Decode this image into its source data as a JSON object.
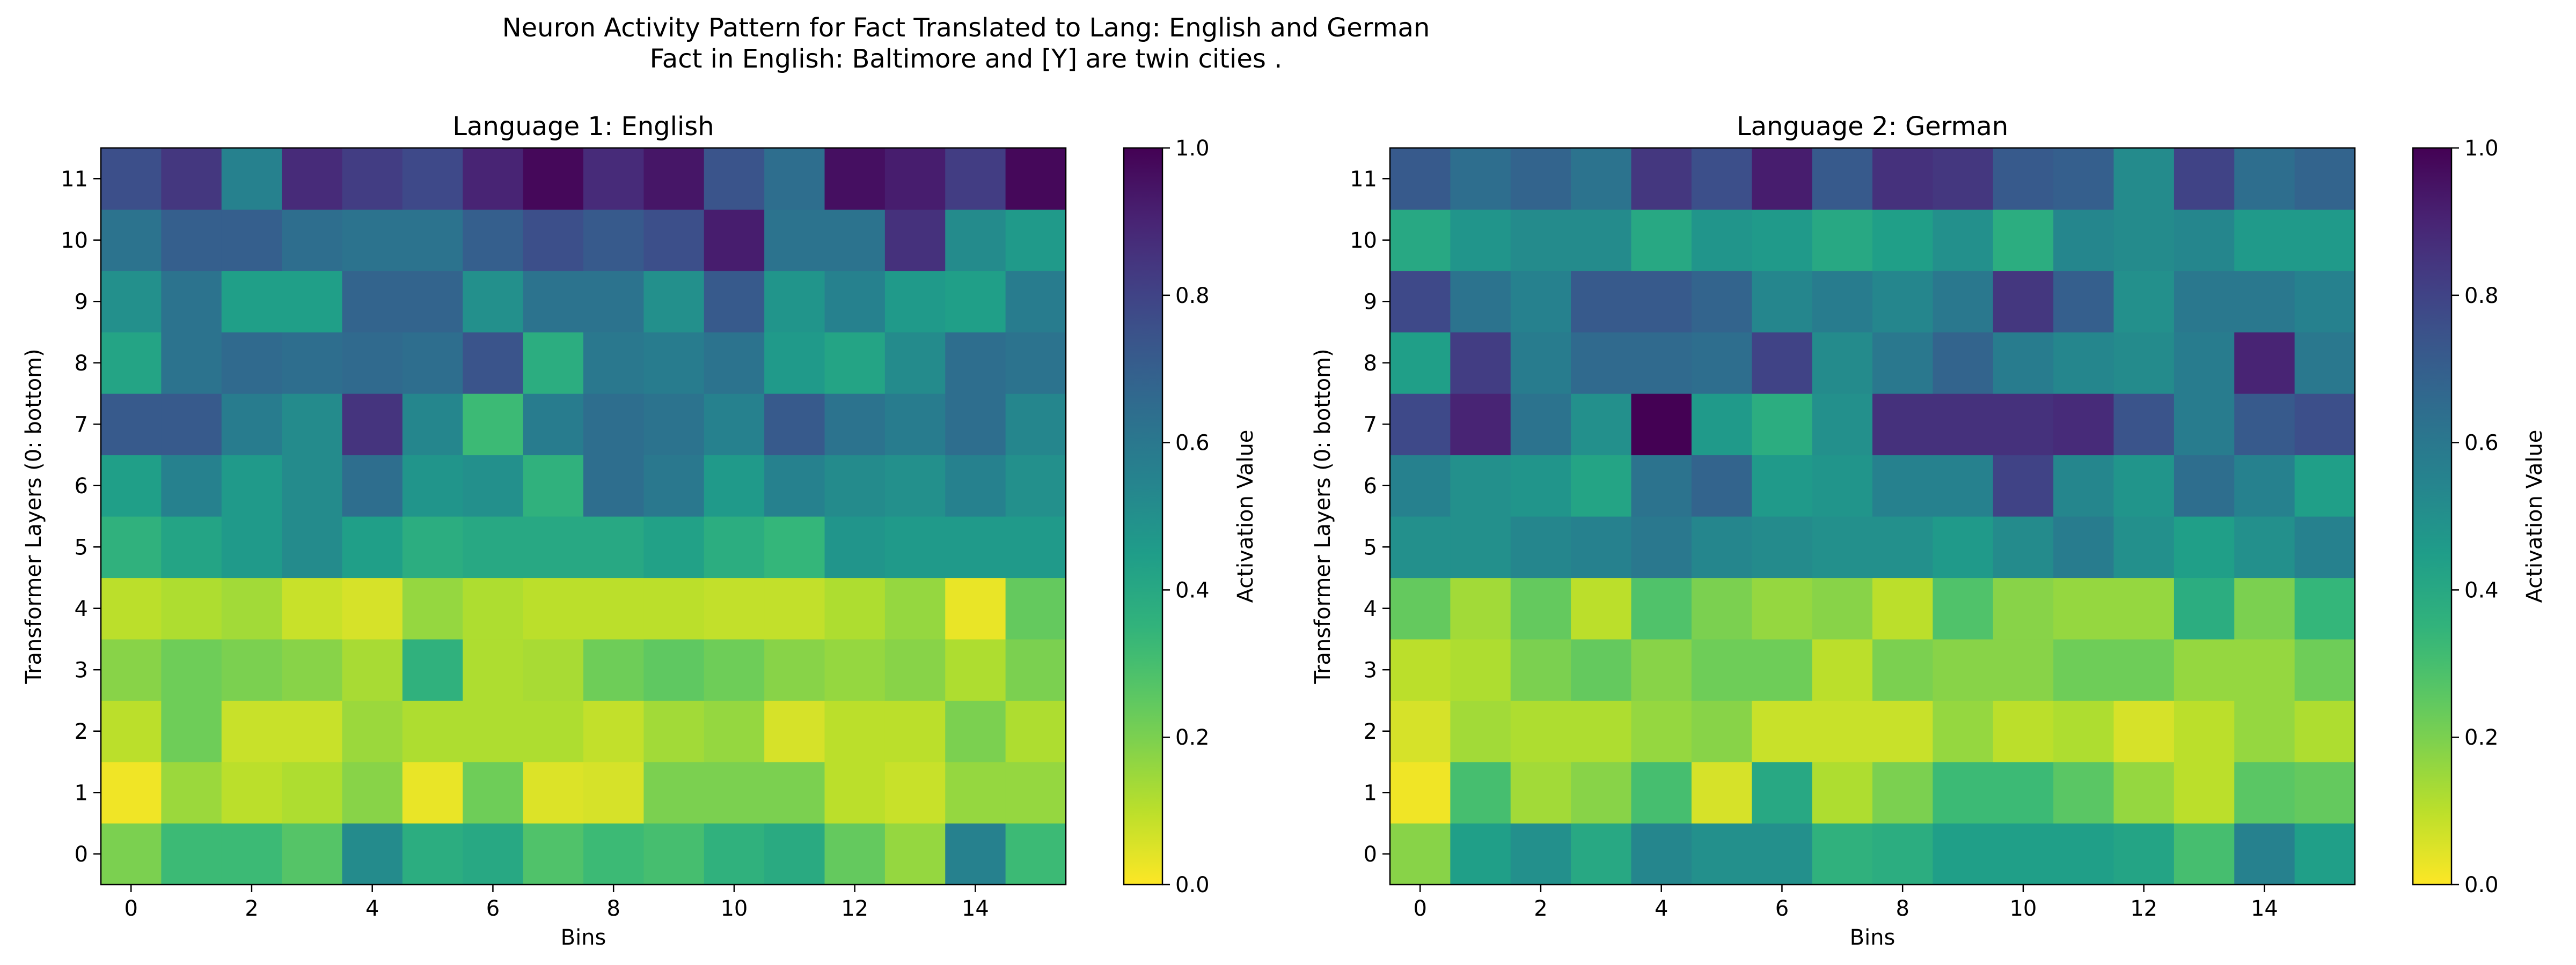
{
  "figure": {
    "title_line1": "Neuron Activity Pattern for Fact Translated to Lang: English and German",
    "title_line2": "Fact in English: Baltimore and [Y] are twin cities ."
  },
  "chart_data": [
    {
      "type": "heatmap",
      "title": "Language 1: English",
      "xlabel": "Bins",
      "ylabel": "Transformer Layers (0: bottom)",
      "colorbar_label": "Activation Value",
      "colormap": "viridis_r",
      "xlim": [
        -0.5,
        15.5
      ],
      "ylim": [
        -0.5,
        11.5
      ],
      "clim": [
        0,
        1
      ],
      "x_ticks": [
        0,
        2,
        4,
        6,
        8,
        10,
        12,
        14
      ],
      "y_ticks": [
        0,
        1,
        2,
        3,
        4,
        5,
        6,
        7,
        8,
        9,
        10,
        11
      ],
      "colorbar_ticks": [
        "0.0",
        "0.2",
        "0.4",
        "0.6",
        "0.8",
        "1.0"
      ],
      "rows_layer0_to_11": [
        [
          0.2,
          0.32,
          0.32,
          0.27,
          0.52,
          0.38,
          0.4,
          0.28,
          0.32,
          0.3,
          0.36,
          0.39,
          0.24,
          0.16,
          0.56,
          0.32
        ],
        [
          0.02,
          0.15,
          0.1,
          0.12,
          0.18,
          0.03,
          0.22,
          0.05,
          0.06,
          0.2,
          0.2,
          0.2,
          0.1,
          0.08,
          0.16,
          0.16
        ],
        [
          0.1,
          0.22,
          0.08,
          0.08,
          0.15,
          0.12,
          0.12,
          0.12,
          0.09,
          0.14,
          0.16,
          0.06,
          0.1,
          0.1,
          0.2,
          0.12
        ],
        [
          0.18,
          0.22,
          0.2,
          0.18,
          0.13,
          0.36,
          0.12,
          0.13,
          0.22,
          0.25,
          0.22,
          0.18,
          0.16,
          0.18,
          0.12,
          0.2
        ],
        [
          0.1,
          0.12,
          0.14,
          0.08,
          0.06,
          0.16,
          0.12,
          0.1,
          0.1,
          0.1,
          0.09,
          0.09,
          0.12,
          0.16,
          0.03,
          0.24
        ],
        [
          0.36,
          0.42,
          0.46,
          0.52,
          0.44,
          0.38,
          0.4,
          0.4,
          0.4,
          0.43,
          0.38,
          0.34,
          0.48,
          0.46,
          0.46,
          0.46
        ],
        [
          0.44,
          0.56,
          0.46,
          0.52,
          0.64,
          0.48,
          0.5,
          0.36,
          0.64,
          0.6,
          0.46,
          0.56,
          0.52,
          0.5,
          0.56,
          0.5
        ],
        [
          0.72,
          0.72,
          0.58,
          0.52,
          0.85,
          0.54,
          0.32,
          0.58,
          0.64,
          0.62,
          0.56,
          0.72,
          0.62,
          0.58,
          0.64,
          0.54
        ],
        [
          0.42,
          0.62,
          0.66,
          0.64,
          0.66,
          0.64,
          0.74,
          0.38,
          0.6,
          0.58,
          0.62,
          0.46,
          0.42,
          0.52,
          0.64,
          0.62
        ],
        [
          0.5,
          0.62,
          0.44,
          0.44,
          0.68,
          0.68,
          0.5,
          0.62,
          0.62,
          0.5,
          0.72,
          0.48,
          0.56,
          0.46,
          0.44,
          0.58
        ],
        [
          0.62,
          0.7,
          0.7,
          0.64,
          0.62,
          0.62,
          0.7,
          0.76,
          0.72,
          0.76,
          0.92,
          0.62,
          0.62,
          0.86,
          0.52,
          0.46
        ],
        [
          0.76,
          0.84,
          0.56,
          0.88,
          0.82,
          0.78,
          0.9,
          0.98,
          0.88,
          0.94,
          0.74,
          0.64,
          0.96,
          0.92,
          0.82,
          0.98
        ]
      ]
    },
    {
      "type": "heatmap",
      "title": "Language 2: German",
      "xlabel": "Bins",
      "ylabel": "Transformer Layers (0: bottom)",
      "colorbar_label": "Activation Value",
      "colormap": "viridis_r",
      "xlim": [
        -0.5,
        15.5
      ],
      "ylim": [
        -0.5,
        11.5
      ],
      "clim": [
        0,
        1
      ],
      "x_ticks": [
        0,
        2,
        4,
        6,
        8,
        10,
        12,
        14
      ],
      "y_ticks": [
        0,
        1,
        2,
        3,
        4,
        5,
        6,
        7,
        8,
        9,
        10,
        11
      ],
      "colorbar_ticks": [
        "0.0",
        "0.2",
        "0.4",
        "0.6",
        "0.8",
        "1.0"
      ],
      "rows_layer0_to_11": [
        [
          0.18,
          0.44,
          0.5,
          0.4,
          0.54,
          0.5,
          0.5,
          0.36,
          0.38,
          0.44,
          0.44,
          0.44,
          0.42,
          0.3,
          0.56,
          0.44
        ],
        [
          0.02,
          0.3,
          0.14,
          0.18,
          0.3,
          0.06,
          0.4,
          0.12,
          0.2,
          0.32,
          0.32,
          0.26,
          0.16,
          0.1,
          0.26,
          0.24
        ],
        [
          0.06,
          0.14,
          0.12,
          0.12,
          0.16,
          0.18,
          0.08,
          0.08,
          0.08,
          0.16,
          0.1,
          0.12,
          0.06,
          0.1,
          0.16,
          0.12
        ],
        [
          0.1,
          0.12,
          0.2,
          0.24,
          0.18,
          0.22,
          0.22,
          0.1,
          0.2,
          0.18,
          0.18,
          0.22,
          0.22,
          0.16,
          0.16,
          0.22
        ],
        [
          0.24,
          0.14,
          0.24,
          0.1,
          0.28,
          0.2,
          0.16,
          0.18,
          0.1,
          0.28,
          0.18,
          0.16,
          0.16,
          0.38,
          0.2,
          0.34
        ],
        [
          0.5,
          0.5,
          0.54,
          0.56,
          0.6,
          0.54,
          0.52,
          0.5,
          0.5,
          0.46,
          0.52,
          0.58,
          0.5,
          0.44,
          0.5,
          0.56
        ],
        [
          0.56,
          0.5,
          0.48,
          0.42,
          0.62,
          0.68,
          0.46,
          0.48,
          0.56,
          0.56,
          0.8,
          0.54,
          0.48,
          0.64,
          0.56,
          0.44
        ],
        [
          0.78,
          0.9,
          0.62,
          0.5,
          1.0,
          0.46,
          0.38,
          0.5,
          0.86,
          0.86,
          0.86,
          0.88,
          0.74,
          0.58,
          0.72,
          0.76
        ],
        [
          0.44,
          0.82,
          0.58,
          0.66,
          0.66,
          0.64,
          0.8,
          0.52,
          0.6,
          0.68,
          0.58,
          0.54,
          0.52,
          0.58,
          0.9,
          0.6
        ],
        [
          0.78,
          0.62,
          0.56,
          0.72,
          0.72,
          0.68,
          0.54,
          0.58,
          0.54,
          0.6,
          0.84,
          0.7,
          0.5,
          0.6,
          0.6,
          0.56
        ],
        [
          0.4,
          0.48,
          0.52,
          0.52,
          0.4,
          0.48,
          0.46,
          0.4,
          0.44,
          0.5,
          0.38,
          0.54,
          0.52,
          0.54,
          0.46,
          0.46
        ],
        [
          0.72,
          0.64,
          0.68,
          0.62,
          0.84,
          0.76,
          0.92,
          0.72,
          0.86,
          0.84,
          0.72,
          0.7,
          0.52,
          0.8,
          0.64,
          0.68
        ]
      ]
    }
  ]
}
